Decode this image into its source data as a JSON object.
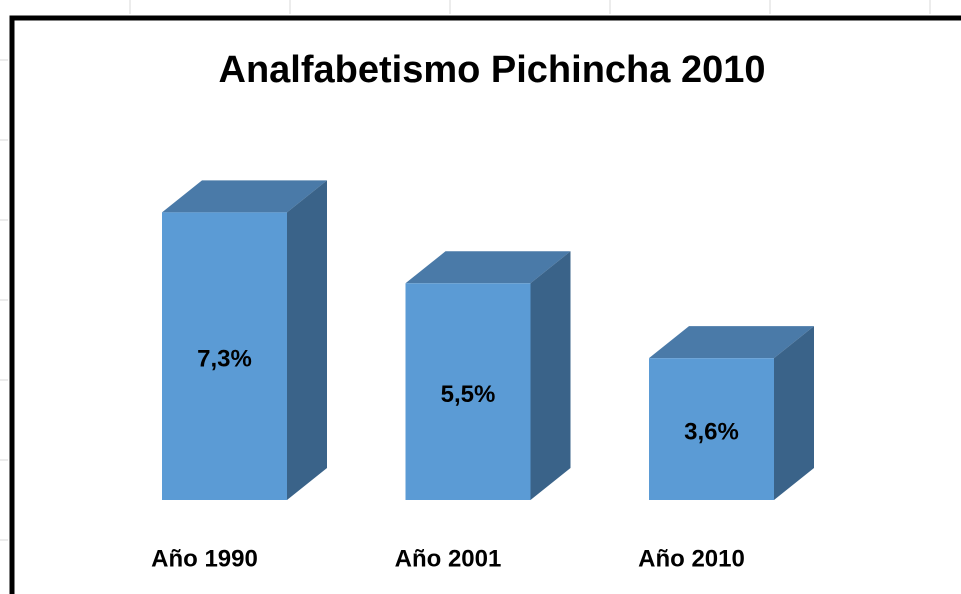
{
  "chart_data": {
    "type": "bar3d",
    "title": "Analfabetismo Pichincha 2010",
    "categories": [
      "Año 1990",
      "Año 2001",
      "Año 2010"
    ],
    "values": [
      7.3,
      5.5,
      3.6
    ],
    "value_labels": [
      "7,3%",
      "5,5%",
      "3,6%"
    ],
    "color": "#5b9bd5"
  }
}
